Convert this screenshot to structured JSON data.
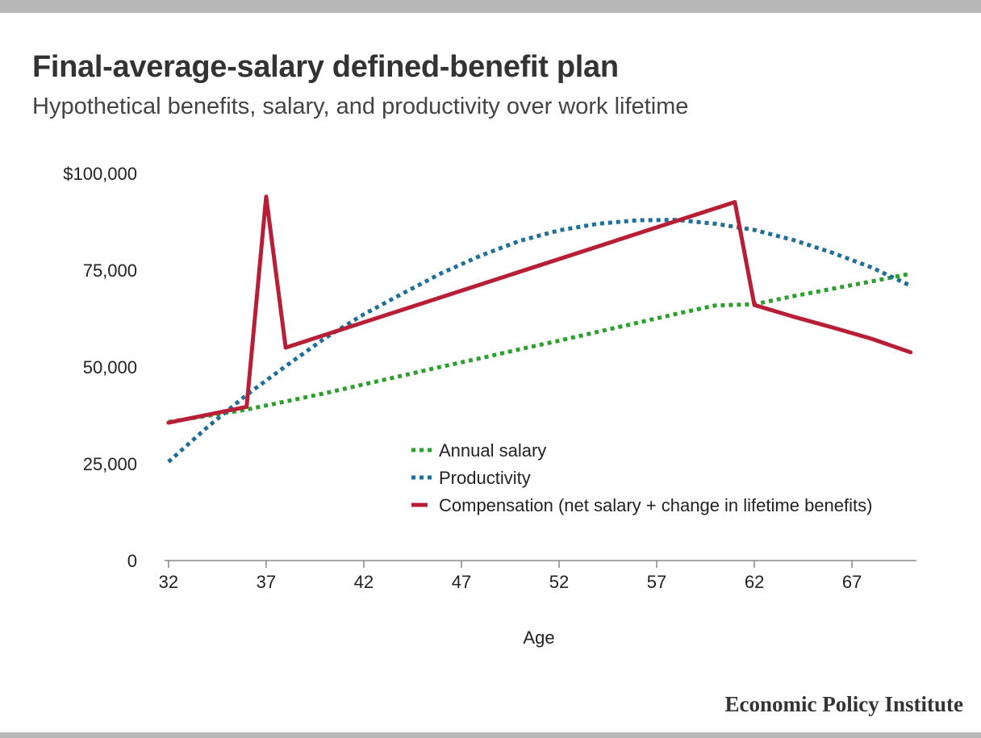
{
  "chart_data": {
    "type": "line",
    "title": "Final-average-salary defined-benefit plan",
    "subtitle": "Hypothetical benefits, salary, and productivity over work lifetime",
    "xlabel": "Age",
    "ylabel": "",
    "x_ticks": [
      "32",
      "37",
      "42",
      "47",
      "52",
      "57",
      "62",
      "67"
    ],
    "y_ticks": [
      "$100,000",
      "75,000",
      "50,000",
      "25,000",
      "0"
    ],
    "xlim": [
      31.8,
      70.3
    ],
    "ylim": [
      0,
      100000
    ],
    "legend_position": "center",
    "series": [
      {
        "name": "Annual salary",
        "color": "#2ca02c",
        "style": "dotted",
        "x": [
          32,
          34,
          36,
          38,
          40,
          42,
          44,
          46,
          48,
          50,
          52,
          54,
          56,
          58,
          60,
          62,
          64,
          66,
          68,
          70
        ],
        "y": [
          35800,
          37400,
          39000,
          41100,
          43200,
          45500,
          47800,
          50100,
          52300,
          54600,
          56800,
          59100,
          61400,
          63700,
          65900,
          66200,
          68300,
          70200,
          72100,
          74100
        ]
      },
      {
        "name": "Productivity",
        "color": "#1f6f9a",
        "style": "dotted",
        "x": [
          32,
          34,
          36,
          38,
          40,
          42,
          44,
          46,
          48,
          50,
          52,
          54,
          56,
          58,
          60,
          62,
          64,
          66,
          68,
          70
        ],
        "y": [
          25500,
          34500,
          42800,
          50200,
          57400,
          63600,
          69000,
          74300,
          78800,
          82600,
          85300,
          87000,
          87900,
          88000,
          87000,
          85400,
          82800,
          79500,
          75700,
          71000
        ]
      },
      {
        "name": "Compensation (net salary + change in lifetime benefits)",
        "color": "#b81e35",
        "style": "solid",
        "x": [
          32,
          36,
          37,
          38,
          61,
          62,
          64,
          66,
          68,
          70
        ],
        "y": [
          35600,
          39700,
          94000,
          55000,
          92600,
          66000,
          63000,
          60200,
          57300,
          53800
        ]
      }
    ]
  },
  "source": "Economic Policy Institute"
}
